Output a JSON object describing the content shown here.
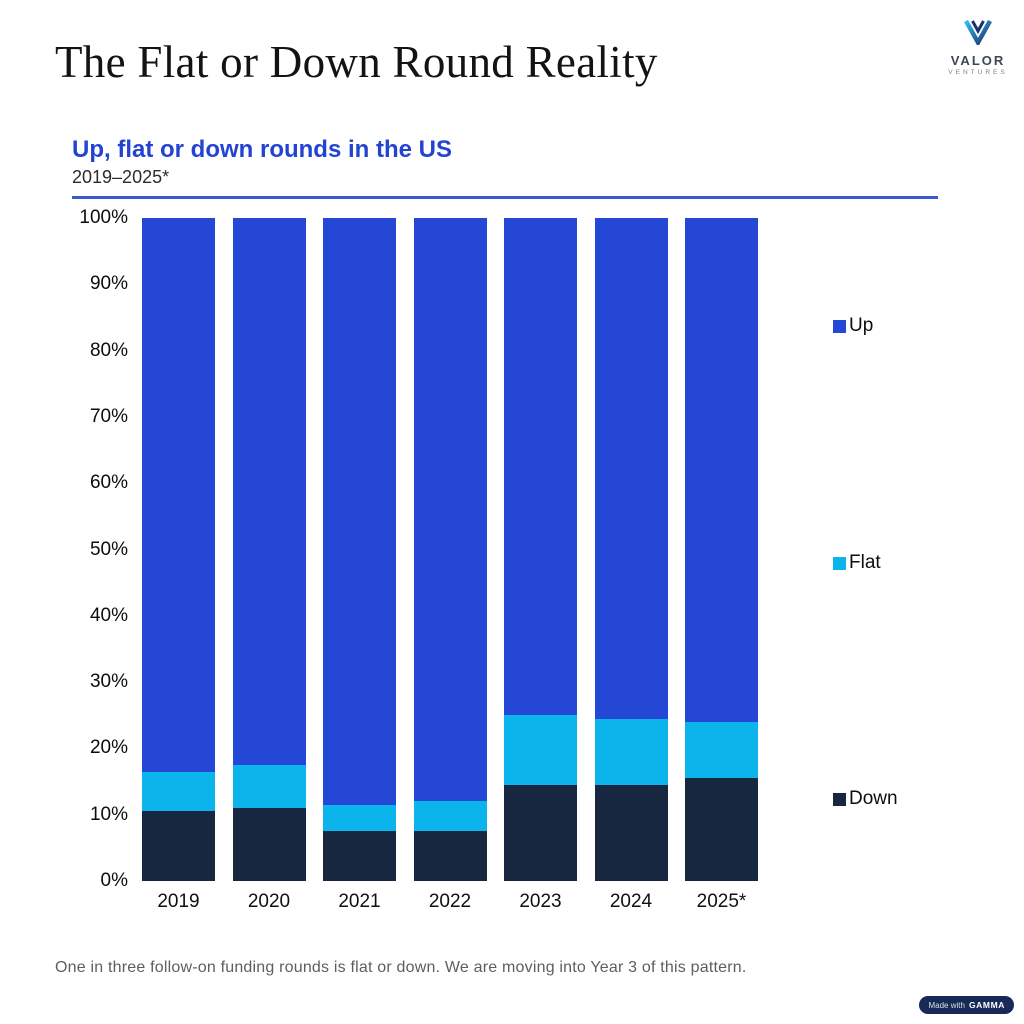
{
  "page": {
    "title": "The Flat or Down Round Reality",
    "footer_note": "One in three follow-on funding rounds is flat or down. We are moving into Year 3 of this pattern.",
    "badge": {
      "prefix": "Made with",
      "brand": "GAMMA"
    }
  },
  "logo": {
    "name": "VALOR",
    "sub": "VENTURES"
  },
  "colors": {
    "accent_blue": "#2343d2",
    "divider_blue": "#3b57d1",
    "up": "#2447d6",
    "flat": "#0cb4ec",
    "down": "#16273f"
  },
  "chart_data": {
    "type": "bar",
    "stacked": true,
    "title": "Up, flat or down rounds in the US",
    "subtitle": "2019–2025*",
    "categories": [
      "2019",
      "2020",
      "2021",
      "2022",
      "2023",
      "2024",
      "2025*"
    ],
    "series": [
      {
        "name": "Up",
        "color": "#2447d6",
        "values": [
          83.5,
          82.5,
          88.5,
          88.0,
          75.0,
          75.5,
          76.0
        ]
      },
      {
        "name": "Flat",
        "color": "#0cb4ec",
        "values": [
          6.0,
          6.5,
          4.0,
          4.5,
          10.5,
          10.0,
          8.5
        ]
      },
      {
        "name": "Down",
        "color": "#16273f",
        "values": [
          10.5,
          11.0,
          7.5,
          7.5,
          14.5,
          14.5,
          15.5
        ]
      }
    ],
    "ylabel": "",
    "xlabel": "",
    "ylim": [
      0,
      100
    ],
    "yticks": [
      "100%",
      "90%",
      "80%",
      "70%",
      "60%",
      "50%",
      "40%",
      "30%",
      "20%",
      "10%",
      "0%"
    ],
    "grid": false,
    "legend_position": "right"
  }
}
